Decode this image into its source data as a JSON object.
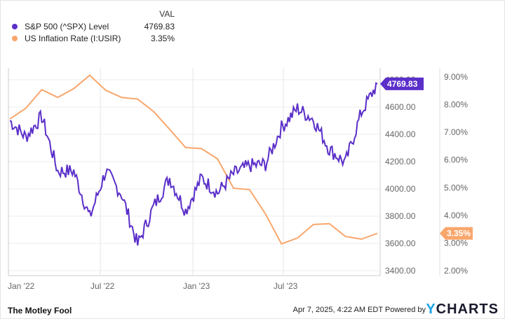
{
  "legend": {
    "header": "VAL",
    "series": [
      {
        "name": "S&P 500 (^SPX) Level",
        "value": "4769.83",
        "color": "#5b2fc9"
      },
      {
        "name": "US Inflation Rate (I:USIR)",
        "value": "3.35%",
        "color": "#f9a66c"
      }
    ]
  },
  "axes": {
    "left_ticks": [
      "4800.00",
      "4600.00",
      "4400.00",
      "4200.00",
      "4000.00",
      "3800.00",
      "3600.00",
      "3400.00"
    ],
    "right_ticks": [
      "9.00%",
      "8.00%",
      "7.00%",
      "6.00%",
      "5.00%",
      "4.00%",
      "3.00%",
      "2.00%"
    ],
    "x_ticks": [
      "Jan '22",
      "Jul '22",
      "Jan '23",
      "Jul '23"
    ]
  },
  "end_labels": {
    "spx": "4769.83",
    "inflation": "3.35%"
  },
  "footer": {
    "brand_left": "The Motley Fool",
    "timestamp": "Apr 7, 2025, 4:22 AM EDT",
    "powered_by": "Powered by",
    "brand_right_y": "Y",
    "brand_right_rest": "CHARTS"
  },
  "chart_data": {
    "type": "line",
    "title": "",
    "x": [
      "2022-01",
      "2022-02",
      "2022-03",
      "2022-04",
      "2022-05",
      "2022-06",
      "2022-07",
      "2022-08",
      "2022-09",
      "2022-10",
      "2022-11",
      "2022-12",
      "2023-01",
      "2023-02",
      "2023-03",
      "2023-04",
      "2023-05",
      "2023-06",
      "2023-07",
      "2023-08",
      "2023-09",
      "2023-10",
      "2023-11",
      "2023-12"
    ],
    "series": [
      {
        "name": "S&P 500 (^SPX) Level",
        "axis": "left",
        "color": "#5b2fc9",
        "values": [
          4500,
          4380,
          4530,
          4130,
          4130,
          3790,
          4130,
          3960,
          3590,
          3870,
          4080,
          3840,
          4080,
          3970,
          4110,
          4170,
          4180,
          4450,
          4590,
          4510,
          4290,
          4190,
          4560,
          4769.83
        ]
      },
      {
        "name": "US Inflation Rate (I:USIR)",
        "axis": "right",
        "color": "#f9a66c",
        "values": [
          7.48,
          7.87,
          8.54,
          8.26,
          8.58,
          9.06,
          8.52,
          8.26,
          8.2,
          7.75,
          7.11,
          6.45,
          6.41,
          6.04,
          4.98,
          4.93,
          4.05,
          2.97,
          3.18,
          3.67,
          3.7,
          3.24,
          3.14,
          3.35
        ]
      }
    ],
    "ylim_left": [
      3400,
      4800
    ],
    "ylim_right": [
      2.0,
      9.0
    ],
    "xlabel": "",
    "ylabel": "",
    "grid": true,
    "legend_position": "top-left"
  }
}
